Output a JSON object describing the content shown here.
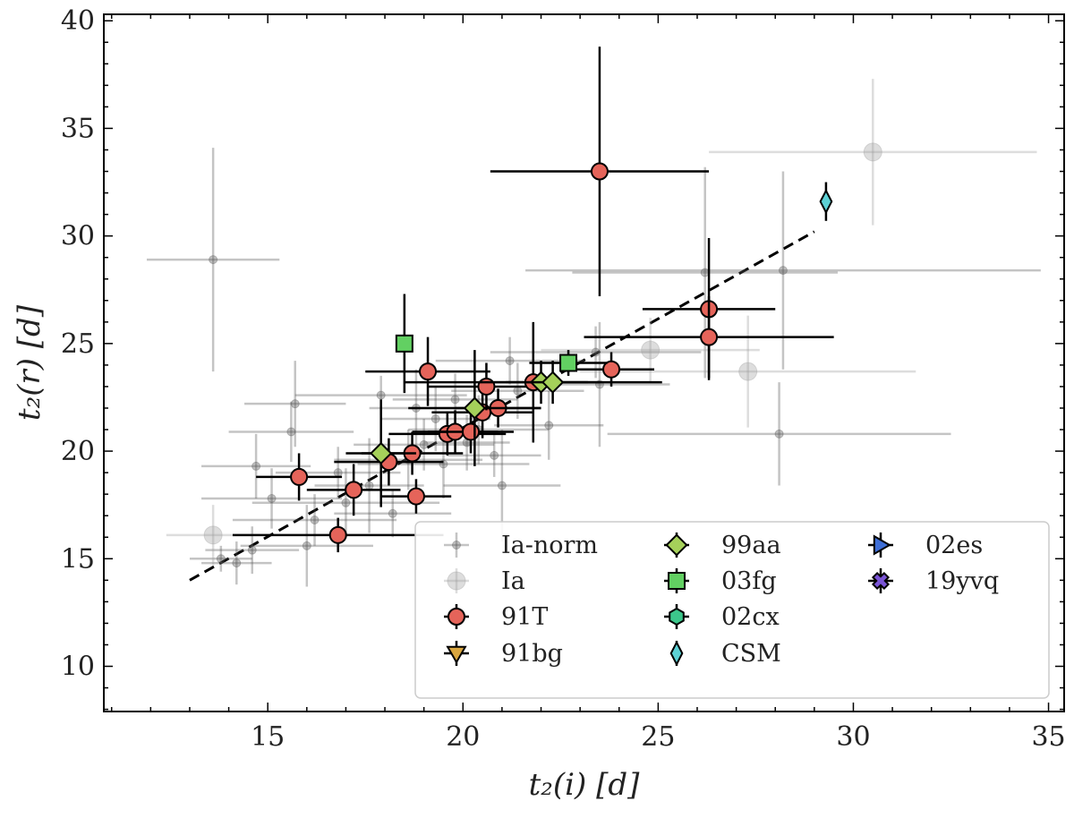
{
  "chart_data": {
    "type": "scatter",
    "xlabel": "t₂(i) [d]",
    "ylabel": "t₂(r) [d]",
    "xlim": [
      10.8,
      35.4
    ],
    "ylim": [
      7.9,
      40.3
    ],
    "xticks": [
      "15",
      "20",
      "25",
      "30",
      "35"
    ],
    "yticks": [
      "10",
      "15",
      "20",
      "25",
      "30",
      "35",
      "40"
    ],
    "grid": false,
    "legend_position": "lower-right",
    "fit_line": {
      "x": [
        13.0,
        29.0
      ],
      "y": [
        14.0,
        30.2
      ],
      "style": "dashed",
      "color": "#000000"
    },
    "series": [
      {
        "name": "Ia-norm",
        "marker": "circle",
        "color": "#555555",
        "size": "small",
        "alpha": 0.35,
        "points": [
          {
            "x": 13.6,
            "y": 28.9,
            "xerr": 1.7,
            "yerr": 5.2
          },
          {
            "x": 13.8,
            "y": 15.0,
            "xerr": 0.8,
            "yerr": 0.6
          },
          {
            "x": 14.2,
            "y": 14.8,
            "xerr": 0.9,
            "yerr": 1.0
          },
          {
            "x": 14.6,
            "y": 15.4,
            "xerr": 1.2,
            "yerr": 1.1
          },
          {
            "x": 14.7,
            "y": 19.3,
            "xerr": 1.4,
            "yerr": 1.5
          },
          {
            "x": 15.1,
            "y": 17.8,
            "xerr": 1.8,
            "yerr": 1.4
          },
          {
            "x": 15.6,
            "y": 20.9,
            "xerr": 1.6,
            "yerr": 1.4
          },
          {
            "x": 15.7,
            "y": 22.2,
            "xerr": 1.3,
            "yerr": 2.0
          },
          {
            "x": 16.0,
            "y": 15.6,
            "xerr": 1.7,
            "yerr": 1.9
          },
          {
            "x": 16.2,
            "y": 16.8,
            "xerr": 2.1,
            "yerr": 1.2
          },
          {
            "x": 16.8,
            "y": 19.0,
            "xerr": 1.6,
            "yerr": 1.2
          },
          {
            "x": 17.0,
            "y": 17.6,
            "xerr": 2.4,
            "yerr": 1.6
          },
          {
            "x": 17.6,
            "y": 18.4,
            "xerr": 1.4,
            "yerr": 2.2
          },
          {
            "x": 17.9,
            "y": 22.6,
            "xerr": 2.2,
            "yerr": 0.9
          },
          {
            "x": 18.2,
            "y": 17.1,
            "xerr": 1.5,
            "yerr": 1.1
          },
          {
            "x": 18.6,
            "y": 19.6,
            "xerr": 1.9,
            "yerr": 1.4
          },
          {
            "x": 18.8,
            "y": 22.0,
            "xerr": 1.2,
            "yerr": 1.8
          },
          {
            "x": 19.0,
            "y": 20.3,
            "xerr": 1.8,
            "yerr": 1.2
          },
          {
            "x": 19.3,
            "y": 21.5,
            "xerr": 1.4,
            "yerr": 1.5
          },
          {
            "x": 19.5,
            "y": 19.4,
            "xerr": 2.2,
            "yerr": 1.6
          },
          {
            "x": 19.8,
            "y": 22.4,
            "xerr": 1.6,
            "yerr": 1.2
          },
          {
            "x": 20.1,
            "y": 20.4,
            "xerr": 1.1,
            "yerr": 1.3
          },
          {
            "x": 20.4,
            "y": 21.0,
            "xerr": 1.8,
            "yerr": 1.6
          },
          {
            "x": 20.8,
            "y": 19.8,
            "xerr": 1.2,
            "yerr": 1.0
          },
          {
            "x": 21.0,
            "y": 18.4,
            "xerr": 1.5,
            "yerr": 2.6
          },
          {
            "x": 21.2,
            "y": 24.2,
            "xerr": 1.9,
            "yerr": 1.1
          },
          {
            "x": 21.4,
            "y": 22.8,
            "xerr": 1.7,
            "yerr": 1.3
          },
          {
            "x": 22.2,
            "y": 21.2,
            "xerr": 1.4,
            "yerr": 1.6
          },
          {
            "x": 23.4,
            "y": 24.6,
            "xerr": 2.7,
            "yerr": 1.2
          },
          {
            "x": 23.5,
            "y": 23.1,
            "xerr": 1.8,
            "yerr": 2.9
          },
          {
            "x": 26.2,
            "y": 28.3,
            "xerr": 3.4,
            "yerr": 4.9
          },
          {
            "x": 28.2,
            "y": 28.4,
            "xerr": 6.6,
            "yerr": 4.6
          },
          {
            "x": 28.1,
            "y": 20.8,
            "xerr": 4.4,
            "yerr": 2.4
          }
        ]
      },
      {
        "name": "Ia",
        "marker": "circle",
        "color": "#9e9e9e",
        "size": "large",
        "alpha": 0.35,
        "points": [
          {
            "x": 13.6,
            "y": 16.1,
            "xerr": 1.2,
            "yerr": 1.4
          },
          {
            "x": 24.8,
            "y": 24.7,
            "xerr": 2.8,
            "yerr": 1.5
          },
          {
            "x": 27.3,
            "y": 23.7,
            "xerr": 4.3,
            "yerr": 2.6
          },
          {
            "x": 30.5,
            "y": 33.9,
            "xerr": 4.2,
            "yerr": 3.4
          }
        ]
      },
      {
        "name": "91T",
        "marker": "circle",
        "color": "#e5645a",
        "size": "medium",
        "alpha": 1,
        "points": [
          {
            "x": 15.8,
            "y": 18.8,
            "xerr": 1.1,
            "yerr": 1.1
          },
          {
            "x": 16.8,
            "y": 16.1,
            "xerr": 2.7,
            "yerr": 0.8
          },
          {
            "x": 17.2,
            "y": 18.2,
            "xerr": 1.2,
            "yerr": 1.2
          },
          {
            "x": 18.1,
            "y": 19.5,
            "xerr": 1.4,
            "yerr": 1.1
          },
          {
            "x": 18.7,
            "y": 19.9,
            "xerr": 1.3,
            "yerr": 1.0
          },
          {
            "x": 18.8,
            "y": 17.9,
            "xerr": 0.9,
            "yerr": 0.8
          },
          {
            "x": 19.1,
            "y": 23.7,
            "xerr": 1.6,
            "yerr": 1.6
          },
          {
            "x": 19.6,
            "y": 20.8,
            "xerr": 1.5,
            "yerr": 1.0
          },
          {
            "x": 19.8,
            "y": 20.9,
            "xerr": 1.1,
            "yerr": 1.0
          },
          {
            "x": 20.2,
            "y": 20.9,
            "xerr": 1.1,
            "yerr": 1.0
          },
          {
            "x": 20.5,
            "y": 21.8,
            "xerr": 1.3,
            "yerr": 1.2
          },
          {
            "x": 20.6,
            "y": 23.0,
            "xerr": 1.5,
            "yerr": 1.1
          },
          {
            "x": 20.9,
            "y": 22.0,
            "xerr": 1.1,
            "yerr": 0.9
          },
          {
            "x": 21.8,
            "y": 23.2,
            "xerr": 3.3,
            "yerr": 2.8
          },
          {
            "x": 23.5,
            "y": 33.0,
            "xerr": 2.8,
            "yerr": 5.8
          },
          {
            "x": 23.8,
            "y": 23.8,
            "xerr": 1.1,
            "yerr": 0.8
          },
          {
            "x": 26.3,
            "y": 26.6,
            "xerr": 1.7,
            "yerr": 3.3
          },
          {
            "x": 26.3,
            "y": 25.3,
            "xerr": 3.2,
            "yerr": 1.9
          }
        ]
      },
      {
        "name": "91bg",
        "marker": "triangle-down",
        "color": "#d9a63f",
        "size": "medium",
        "alpha": 1,
        "points": []
      },
      {
        "name": "99aa",
        "marker": "diamond",
        "color": "#a5d05a",
        "size": "medium",
        "alpha": 1,
        "points": [
          {
            "x": 17.9,
            "y": 19.9,
            "xerr": 0.9,
            "yerr": 2.5
          },
          {
            "x": 20.3,
            "y": 22.0,
            "xerr": 1.7,
            "yerr": 2.7
          },
          {
            "x": 22.0,
            "y": 23.2,
            "xerr": 1.2,
            "yerr": 1.0
          },
          {
            "x": 22.3,
            "y": 23.2,
            "xerr": 1.2,
            "yerr": 1.0
          }
        ]
      },
      {
        "name": "03fg",
        "marker": "square",
        "color": "#62d062",
        "size": "medium",
        "alpha": 1,
        "points": [
          {
            "x": 18.5,
            "y": 25.0,
            "xerr": 0.0,
            "yerr": 2.3
          },
          {
            "x": 22.7,
            "y": 24.1,
            "xerr": 1.0,
            "yerr": 0.6
          }
        ]
      },
      {
        "name": "02cx",
        "marker": "hexagon",
        "color": "#3cc78b",
        "size": "medium",
        "alpha": 1,
        "points": []
      },
      {
        "name": "CSM",
        "marker": "thin-diamond",
        "color": "#5dd1d5",
        "size": "medium",
        "alpha": 1,
        "points": [
          {
            "x": 29.3,
            "y": 31.6,
            "xerr": 0.0,
            "yerr": 0.9
          }
        ]
      },
      {
        "name": "02es",
        "marker": "triangle-right",
        "color": "#3e6ed6",
        "size": "medium",
        "alpha": 1,
        "points": []
      },
      {
        "name": "19yvq",
        "marker": "x",
        "color": "#7b55d6",
        "size": "medium",
        "alpha": 1,
        "points": []
      }
    ]
  }
}
